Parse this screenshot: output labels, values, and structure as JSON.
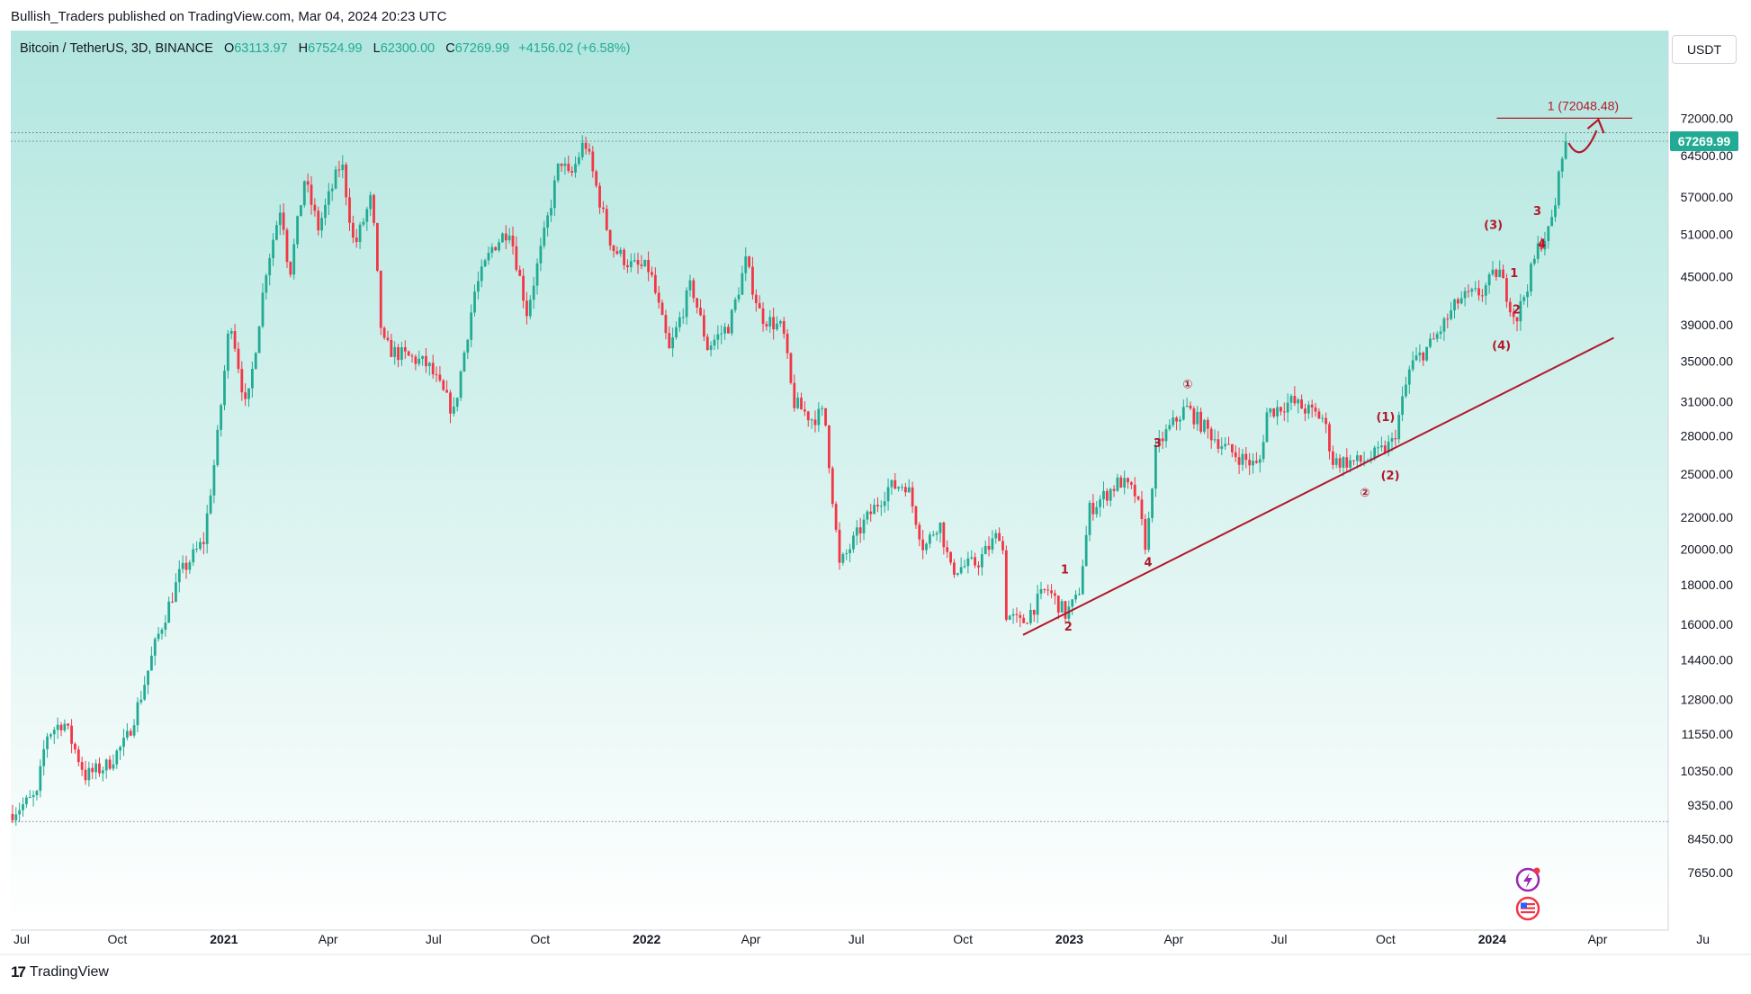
{
  "header": {
    "publisher_line": "Bullish_Traders published on TradingView.com, Mar 04, 2024 20:23 UTC",
    "symbol": "Bitcoin / TetherUS, 3D, BINANCE",
    "open_label": "O",
    "open": "63113.97",
    "high_label": "H",
    "high": "67524.99",
    "low_label": "L",
    "low": "62300.00",
    "close_label": "C",
    "close": "67269.99",
    "change": "+4156.02 (+6.58%)",
    "currency": "USDT"
  },
  "footer": {
    "brand": "TradingView",
    "logo": "17"
  },
  "colors": {
    "up": "#22ab94",
    "down": "#f23645",
    "annotation": "#b2182b",
    "bg_top": "#b2e6df",
    "bg_bottom": "#ffffff",
    "price_badge": "#22ab94"
  },
  "icons": [
    "lightning-icon",
    "us-flag-icon"
  ],
  "chart_data": {
    "type": "candlestick",
    "scale": "log",
    "x_range": [
      "2020-07-01",
      "2024-06-01"
    ],
    "y_range": [
      7000,
      84000
    ],
    "y_ticks": [
      7650,
      8450,
      9350,
      10350,
      11550,
      12800,
      14400,
      16000,
      18000,
      20000,
      22000,
      25000,
      28000,
      31000,
      35000,
      39000,
      45000,
      51000,
      57000,
      64500,
      72000
    ],
    "y_tick_labels": [
      "7650.00",
      "8450.00",
      "9350.00",
      "10350.00",
      "11550.00",
      "12800.00",
      "14400.00",
      "16000.00",
      "18000.00",
      "20000.00",
      "22000.00",
      "25000.00",
      "28000.00",
      "31000.00",
      "35000.00",
      "39000.00",
      "45000.00",
      "51000.00",
      "57000.00",
      "64500.00",
      "72000.00"
    ],
    "x_ticks": [
      {
        "date": "2020-07-01",
        "label": "Jul",
        "bold": false
      },
      {
        "date": "2020-10-01",
        "label": "Oct",
        "bold": false
      },
      {
        "date": "2021-01-01",
        "label": "2021",
        "bold": true
      },
      {
        "date": "2021-04-01",
        "label": "Apr",
        "bold": false
      },
      {
        "date": "2021-07-01",
        "label": "Jul",
        "bold": false
      },
      {
        "date": "2021-10-01",
        "label": "Oct",
        "bold": false
      },
      {
        "date": "2022-01-01",
        "label": "2022",
        "bold": true
      },
      {
        "date": "2022-04-01",
        "label": "Apr",
        "bold": false
      },
      {
        "date": "2022-07-01",
        "label": "Jul",
        "bold": false
      },
      {
        "date": "2022-10-01",
        "label": "Oct",
        "bold": false
      },
      {
        "date": "2023-01-01",
        "label": "2023",
        "bold": true
      },
      {
        "date": "2023-04-01",
        "label": "Apr",
        "bold": false
      },
      {
        "date": "2023-07-01",
        "label": "Jul",
        "bold": false
      },
      {
        "date": "2023-10-01",
        "label": "Oct",
        "bold": false
      },
      {
        "date": "2024-01-01",
        "label": "2024",
        "bold": true
      },
      {
        "date": "2024-04-01",
        "label": "Apr",
        "bold": false
      },
      {
        "date": "2024-07-01",
        "label": "Ju",
        "bold": false
      }
    ],
    "last_price": 67269.99,
    "last_price_label": "67269.99",
    "ath_reference": 69000,
    "low_reference": 8900,
    "target_price": 72048.48,
    "target_label": "1 (72048.48)",
    "target_date_range": [
      "2024-01-05",
      "2024-05-01"
    ],
    "trendline": {
      "from": {
        "date": "2022-11-22",
        "price": 15500
      },
      "to": {
        "date": "2024-04-15",
        "price": 37500
      }
    },
    "path_points": [
      [
        "2020-07-01",
        9100
      ],
      [
        "2020-07-25",
        9600
      ],
      [
        "2020-08-02",
        11500
      ],
      [
        "2020-08-17",
        12000
      ],
      [
        "2020-09-05",
        10200
      ],
      [
        "2020-09-23",
        10500
      ],
      [
        "2020-10-10",
        11300
      ],
      [
        "2020-10-22",
        12800
      ],
      [
        "2020-11-05",
        15200
      ],
      [
        "2020-11-25",
        18500
      ],
      [
        "2020-12-16",
        20500
      ],
      [
        "2020-12-27",
        27000
      ],
      [
        "2021-01-08",
        40000
      ],
      [
        "2021-01-22",
        30000
      ],
      [
        "2021-02-08",
        46000
      ],
      [
        "2021-02-21",
        56000
      ],
      [
        "2021-02-28",
        45000
      ],
      [
        "2021-03-13",
        60000
      ],
      [
        "2021-03-25",
        52000
      ],
      [
        "2021-04-14",
        63500
      ],
      [
        "2021-04-25",
        49000
      ],
      [
        "2021-05-10",
        57000
      ],
      [
        "2021-05-19",
        37000
      ],
      [
        "2021-05-28",
        36000
      ],
      [
        "2021-06-20",
        35000
      ],
      [
        "2021-06-28",
        34500
      ],
      [
        "2021-07-20",
        30000
      ],
      [
        "2021-08-07",
        43000
      ],
      [
        "2021-08-22",
        49000
      ],
      [
        "2021-09-06",
        52000
      ],
      [
        "2021-09-21",
        40500
      ],
      [
        "2021-10-05",
        50000
      ],
      [
        "2021-10-20",
        64000
      ],
      [
        "2021-10-28",
        60000
      ],
      [
        "2021-11-10",
        67500
      ],
      [
        "2021-11-26",
        54000
      ],
      [
        "2021-12-04",
        49000
      ],
      [
        "2021-12-20",
        46500
      ],
      [
        "2022-01-05",
        46000
      ],
      [
        "2022-01-22",
        36000
      ],
      [
        "2022-02-10",
        44000
      ],
      [
        "2022-02-24",
        36500
      ],
      [
        "2022-03-15",
        39000
      ],
      [
        "2022-03-29",
        47000
      ],
      [
        "2022-04-11",
        40000
      ],
      [
        "2022-04-30",
        38500
      ],
      [
        "2022-05-09",
        31000
      ],
      [
        "2022-05-25",
        29500
      ],
      [
        "2022-06-05",
        30000
      ],
      [
        "2022-06-13",
        22500
      ],
      [
        "2022-06-18",
        19000
      ],
      [
        "2022-07-08",
        21500
      ],
      [
        "2022-07-30",
        24000
      ],
      [
        "2022-08-15",
        24300
      ],
      [
        "2022-08-30",
        20000
      ],
      [
        "2022-09-12",
        21800
      ],
      [
        "2022-09-22",
        18800
      ],
      [
        "2022-10-15",
        19200
      ],
      [
        "2022-11-05",
        21200
      ],
      [
        "2022-11-09",
        16500
      ],
      [
        "2022-11-22",
        16000
      ],
      [
        "2022-12-14",
        17800
      ],
      [
        "2022-12-30",
        16500
      ],
      [
        "2023-01-10",
        17300
      ],
      [
        "2023-01-20",
        22500
      ],
      [
        "2023-02-15",
        24500
      ],
      [
        "2023-03-01",
        23500
      ],
      [
        "2023-03-10",
        20000
      ],
      [
        "2023-03-17",
        26500
      ],
      [
        "2023-03-25",
        28000
      ],
      [
        "2023-04-13",
        30500
      ],
      [
        "2023-05-01",
        28500
      ],
      [
        "2023-05-20",
        26800
      ],
      [
        "2023-06-15",
        25500
      ],
      [
        "2023-06-22",
        30000
      ],
      [
        "2023-07-13",
        31000
      ],
      [
        "2023-08-10",
        29500
      ],
      [
        "2023-08-18",
        26000
      ],
      [
        "2023-09-10",
        25900
      ],
      [
        "2023-09-25",
        26500
      ],
      [
        "2023-10-09",
        27500
      ],
      [
        "2023-10-24",
        34500
      ],
      [
        "2023-11-12",
        37000
      ],
      [
        "2023-12-05",
        42000
      ],
      [
        "2023-12-25",
        43000
      ],
      [
        "2024-01-08",
        46000
      ],
      [
        "2024-01-12",
        44000
      ],
      [
        "2024-01-23",
        39500
      ],
      [
        "2024-01-31",
        43000
      ],
      [
        "2024-02-12",
        49500
      ],
      [
        "2024-02-21",
        51500
      ],
      [
        "2024-02-27",
        57000
      ],
      [
        "2024-03-04",
        67269.99
      ]
    ],
    "wave_labels": [
      {
        "text": "1",
        "date": "2022-12-28",
        "price": 18600
      },
      {
        "text": "2",
        "date": "2022-12-31",
        "price": 15700
      },
      {
        "text": "3",
        "date": "2023-03-18",
        "price": 27100
      },
      {
        "text": "4",
        "date": "2023-03-10",
        "price": 19000
      },
      {
        "text": "①",
        "date": "2023-04-13",
        "price": 32300
      },
      {
        "text": "②",
        "date": "2023-09-13",
        "price": 23400
      },
      {
        "text": "(1)",
        "date": "2023-10-01",
        "price": 29300
      },
      {
        "text": "(2)",
        "date": "2023-10-05",
        "price": 24600
      },
      {
        "text": "(3)",
        "date": "2024-01-02",
        "price": 51800
      },
      {
        "text": "(4)",
        "date": "2024-01-09",
        "price": 36200
      },
      {
        "text": "1",
        "date": "2024-01-20",
        "price": 44900
      },
      {
        "text": "2",
        "date": "2024-01-22",
        "price": 40300
      },
      {
        "text": "3",
        "date": "2024-02-09",
        "price": 54000
      },
      {
        "text": "4",
        "date": "2024-02-13",
        "price": 49000
      }
    ]
  }
}
